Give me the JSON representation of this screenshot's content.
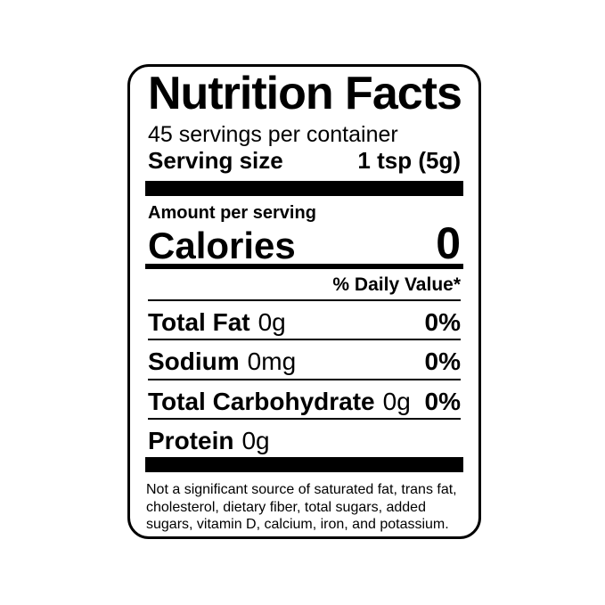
{
  "label": {
    "title": "Nutrition Facts",
    "servings_per_container": "45 servings per container",
    "serving_size": {
      "label": "Serving size",
      "value": "1 tsp (5g)"
    },
    "amount_per_serving": "Amount per serving",
    "calories": {
      "label": "Calories",
      "value": "0"
    },
    "daily_value_header": "% Daily Value*",
    "nutrients": [
      {
        "name": "Total Fat",
        "amount": "0g",
        "daily_value": "0%"
      },
      {
        "name": "Sodium",
        "amount": "0mg",
        "daily_value": "0%"
      },
      {
        "name": "Total Carbohydrate",
        "amount": "0g",
        "daily_value": "0%"
      },
      {
        "name": "Protein",
        "amount": "0g",
        "daily_value": ""
      }
    ],
    "footnote": "Not a significant source of saturated fat, trans fat, cholesterol, dietary fiber, total sugars, added sugars, vitamin D, calcium, iron, and potassium."
  },
  "colors": {
    "text": "#000000",
    "background": "#ffffff",
    "border": "#000000"
  }
}
